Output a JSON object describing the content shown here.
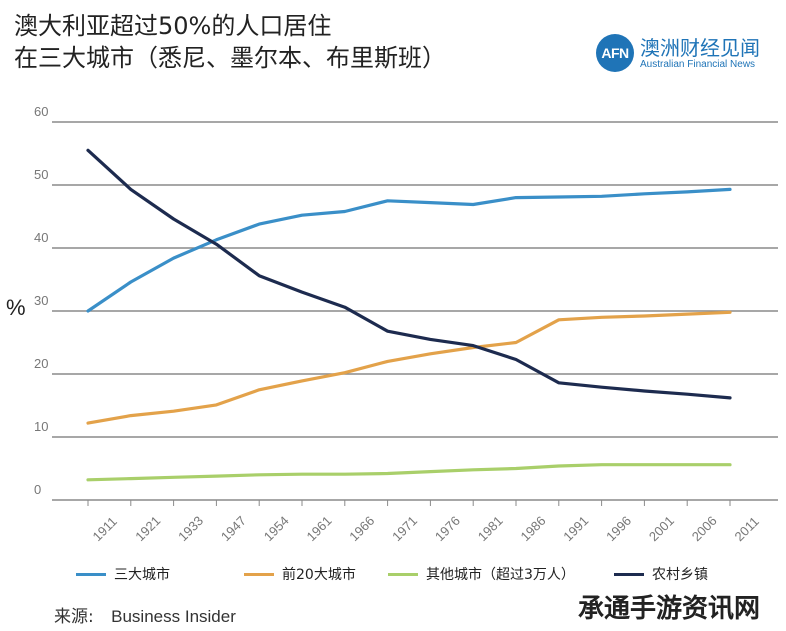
{
  "title": {
    "line1": "澳大利亚超过50%的人口居住",
    "line2": "在三大城市（悉尼、墨尔本、布里斯班）"
  },
  "brand": {
    "logo_text": "AFN",
    "name_cn": "澳洲财经见闻",
    "name_en": "Australian Financial News"
  },
  "colors": {
    "big3": "#3a8fc8",
    "top20": "#e3a24a",
    "other": "#a9cf6a",
    "rural": "#1d2b4f",
    "grid": "#8a8a8a",
    "axis_text": "#777777"
  },
  "chart_data": {
    "type": "line",
    "title": "澳大利亚超过50%的人口居住在三大城市（悉尼、墨尔本、布里斯班）",
    "xlabel": "",
    "ylabel": "%",
    "ylim": [
      0,
      60
    ],
    "yticks": [
      0,
      10,
      20,
      30,
      40,
      50,
      60
    ],
    "grid": true,
    "legend_position": "bottom",
    "categories": [
      "1911",
      "1921",
      "1933",
      "1947",
      "1954",
      "1961",
      "1966",
      "1971",
      "1976",
      "1981",
      "1986",
      "1991",
      "1996",
      "2001",
      "2006",
      "2011"
    ],
    "series": [
      {
        "key": "big3",
        "name": "三大城市",
        "values": [
          30,
          34.6,
          38.4,
          41.3,
          43.8,
          45.2,
          45.8,
          47.5,
          47.2,
          46.9,
          48.0,
          48.1,
          48.2,
          48.6,
          48.9,
          49.3
        ]
      },
      {
        "key": "top20",
        "name": "前20大城市",
        "values": [
          12.2,
          13.4,
          14.1,
          15.1,
          17.5,
          18.9,
          20.2,
          22.0,
          23.2,
          24.2,
          25.0,
          28.6,
          29.0,
          29.2,
          29.5,
          29.8
        ]
      },
      {
        "key": "other",
        "name": "其他城市（超过3万人）",
        "values": [
          3.2,
          3.4,
          3.6,
          3.8,
          4.0,
          4.1,
          4.1,
          4.2,
          4.5,
          4.8,
          5.0,
          5.4,
          5.6,
          5.6,
          5.6,
          5.6
        ]
      },
      {
        "key": "rural",
        "name": "农村乡镇",
        "values": [
          55.5,
          49.3,
          44.6,
          40.6,
          35.6,
          33.0,
          30.6,
          26.8,
          25.5,
          24.5,
          22.3,
          18.6,
          17.9,
          17.3,
          16.8,
          16.2
        ]
      }
    ]
  },
  "source": {
    "label": "来源:",
    "value": "Business Insider"
  },
  "corner_watermark": "承通手游资讯网"
}
